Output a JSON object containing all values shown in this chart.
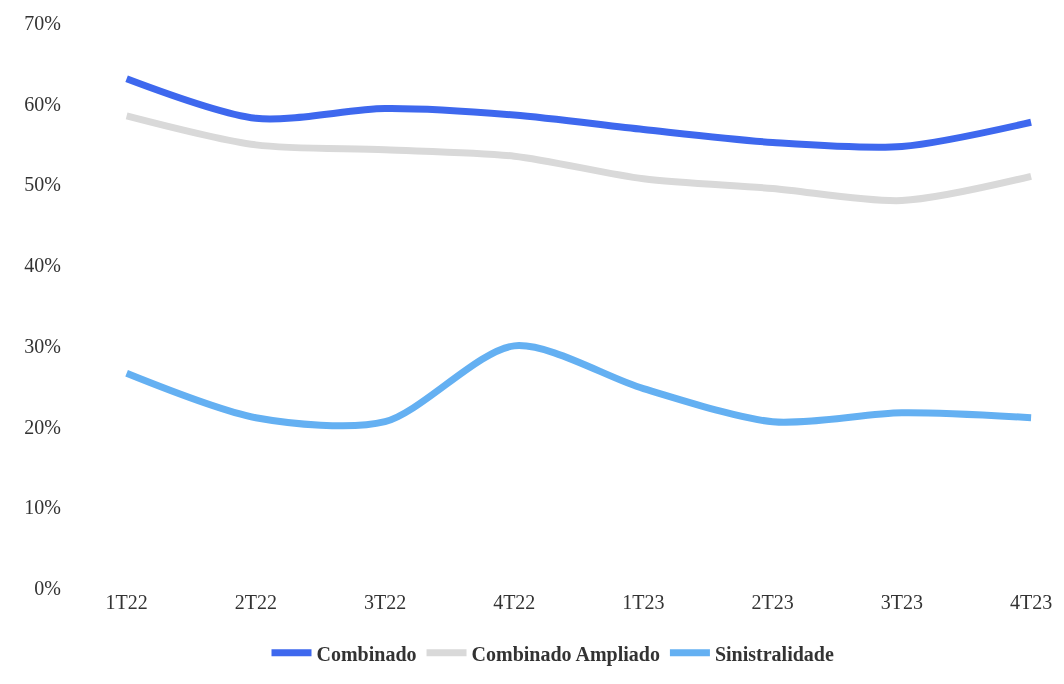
{
  "chart_data": {
    "type": "line",
    "categories": [
      "1T22",
      "2T22",
      "3T22",
      "4T22",
      "1T23",
      "2T23",
      "3T23",
      "4T23"
    ],
    "series": [
      {
        "name": "Combinado",
        "color": "#3e68ee",
        "values": [
          63.1,
          58.2,
          59.4,
          58.6,
          56.8,
          55.2,
          54.7,
          57.7
        ]
      },
      {
        "name": "Combinado Ampliado",
        "color": "#d9d9d9",
        "values": [
          58.5,
          54.9,
          54.3,
          53.5,
          50.7,
          49.5,
          48.0,
          51.0
        ]
      },
      {
        "name": "Sinistralidade",
        "color": "#64b0f2",
        "values": [
          26.6,
          21.1,
          20.6,
          30.0,
          24.7,
          20.6,
          21.7,
          21.1
        ]
      }
    ],
    "ylim": [
      0,
      70
    ],
    "yticks": [
      {
        "value": 0,
        "label": "0%"
      },
      {
        "value": 10,
        "label": "10%"
      },
      {
        "value": 20,
        "label": "20%"
      },
      {
        "value": 30,
        "label": "30%"
      },
      {
        "value": 40,
        "label": "40%"
      },
      {
        "value": 50,
        "label": "50%"
      },
      {
        "value": 60,
        "label": "60%"
      },
      {
        "value": 70,
        "label": "70%"
      }
    ],
    "grid": false,
    "legend": "bottom",
    "marker": "none",
    "line_style": "solid"
  }
}
